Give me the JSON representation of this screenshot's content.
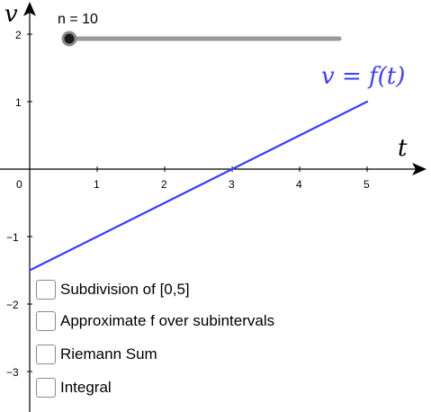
{
  "axes": {
    "x_name": "t",
    "y_name": "v",
    "origin_label": "0",
    "x_ticks": [
      "1",
      "2",
      "3",
      "4",
      "5"
    ],
    "y_ticks": [
      "2",
      "1",
      "−1",
      "−2",
      "−3"
    ]
  },
  "slider": {
    "label": "n = 10",
    "value": 10
  },
  "function": {
    "label_v": "v",
    "label_eq": " = ",
    "label_f": "f",
    "label_args": "(t)",
    "color": "#3c3cff",
    "points": [
      [
        0,
        -1.5
      ],
      [
        5,
        1.0
      ]
    ]
  },
  "checkboxes": [
    {
      "label": "Subdivision of [0,5]",
      "checked": false
    },
    {
      "label": "Approximate f over subintervals",
      "checked": false
    },
    {
      "label": "Riemann Sum",
      "checked": false
    },
    {
      "label": "Integral",
      "checked": false
    }
  ]
}
